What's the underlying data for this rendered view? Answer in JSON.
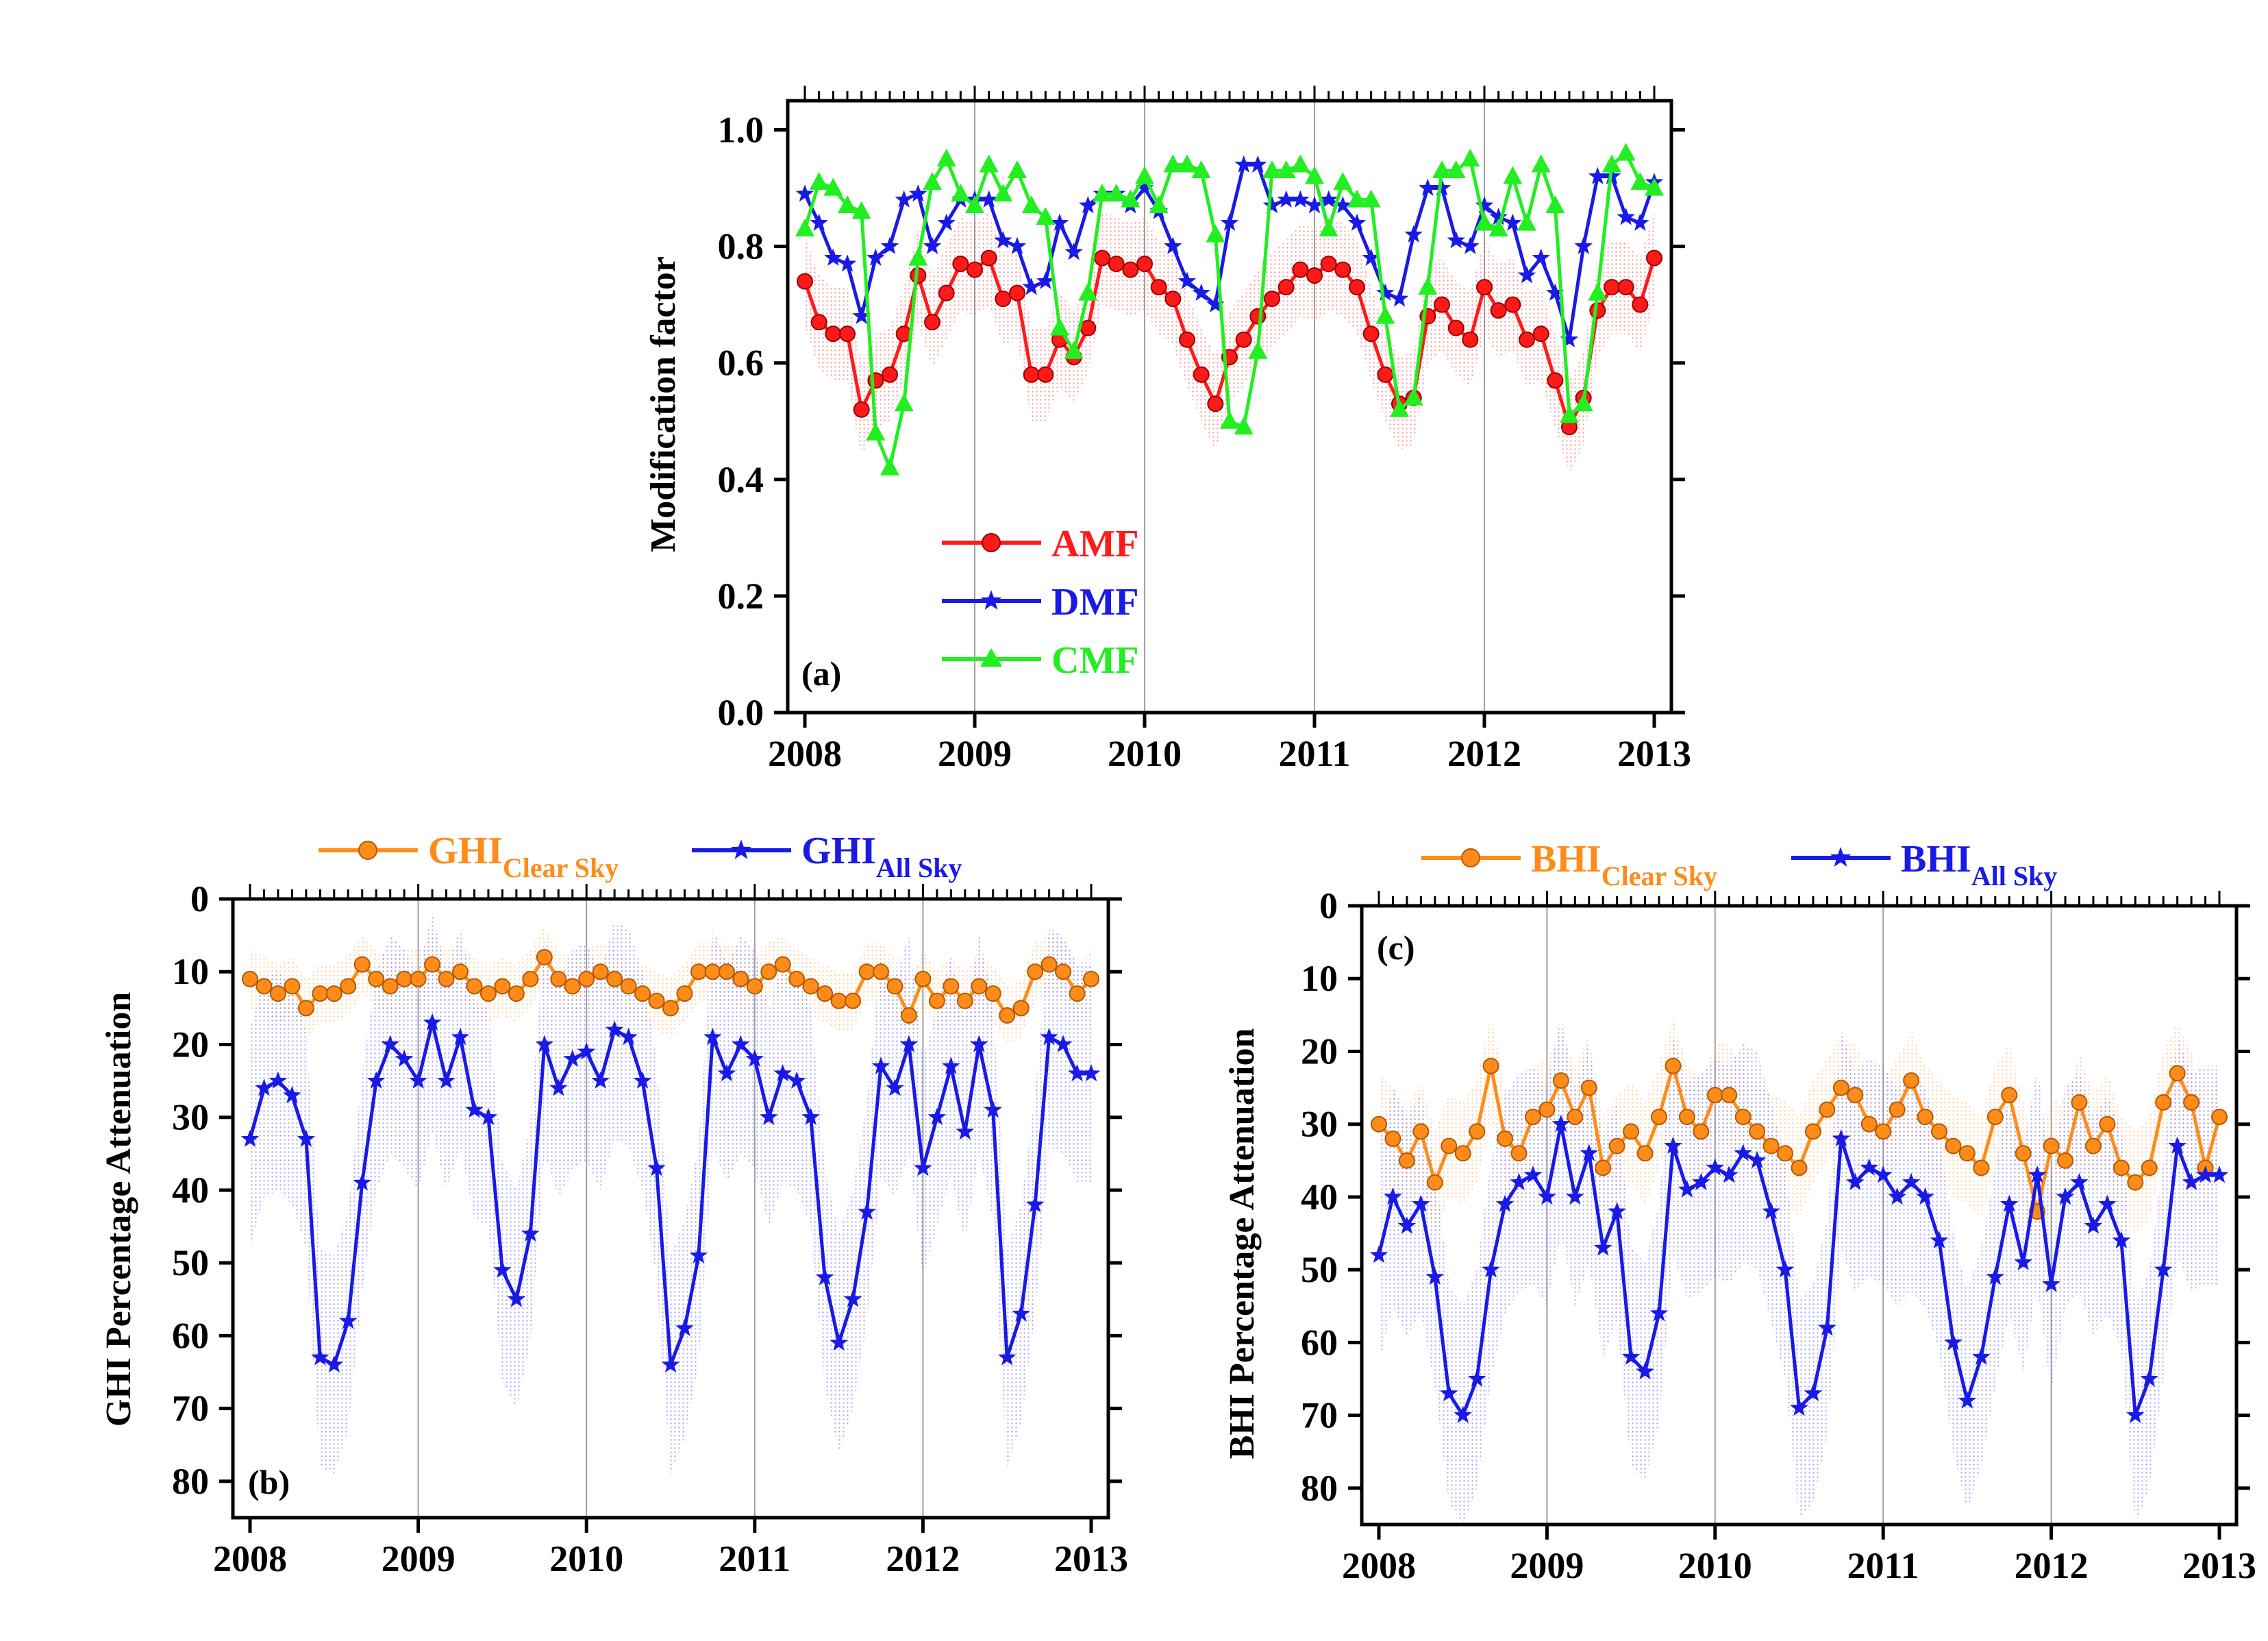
{
  "figure": {
    "colors": {
      "amf": "#ff1a1a",
      "dmf": "#1a1ae6",
      "cmf": "#22ee22",
      "clear": "#ff8c1a",
      "all": "#1a1ae6",
      "grid": "#a0a0a0"
    }
  },
  "chart_data": [
    {
      "id": "a",
      "type": "line",
      "panel_label": "(a)",
      "ylabel": "Modification factor",
      "xlabel": "",
      "xlim": [
        2008,
        2013
      ],
      "ylim": [
        0.0,
        1.05
      ],
      "yticks": [
        0.0,
        0.2,
        0.4,
        0.6,
        0.8,
        1.0
      ],
      "ytick_labels": [
        "0.0",
        "0.2",
        "0.4",
        "0.6",
        "0.8",
        "1.0"
      ],
      "xticks": [
        2008,
        2009,
        2010,
        2011,
        2012,
        2013
      ],
      "xtick_labels": [
        "2008",
        "2009",
        "2010",
        "2011",
        "2012",
        "2013"
      ],
      "grid": "vertical",
      "inverted_y": false,
      "legend": [
        {
          "label": "AMF",
          "marker": "circle",
          "color_key": "amf"
        },
        {
          "label": "DMF",
          "marker": "star",
          "color_key": "dmf"
        },
        {
          "label": "CMF",
          "marker": "triangle",
          "color_key": "cmf"
        }
      ],
      "series": [
        {
          "name": "AMF",
          "color_key": "amf",
          "marker": "circle",
          "band": 0.08,
          "values": [
            0.74,
            0.67,
            0.65,
            0.65,
            0.52,
            0.57,
            0.58,
            0.65,
            0.75,
            0.67,
            0.72,
            0.77,
            0.76,
            0.78,
            0.71,
            0.72,
            0.58,
            0.58,
            0.64,
            0.61,
            0.66,
            0.78,
            0.77,
            0.76,
            0.77,
            0.73,
            0.71,
            0.64,
            0.58,
            0.53,
            0.61,
            0.64,
            0.68,
            0.71,
            0.73,
            0.76,
            0.75,
            0.77,
            0.76,
            0.73,
            0.65,
            0.58,
            0.53,
            0.54,
            0.68,
            0.7,
            0.66,
            0.64,
            0.73,
            0.69,
            0.7,
            0.64,
            0.65,
            0.57,
            0.49,
            0.54,
            0.69,
            0.73,
            0.73,
            0.7,
            0.78
          ]
        },
        {
          "name": "DMF",
          "color_key": "dmf",
          "marker": "star",
          "band": 0,
          "values": [
            0.89,
            0.84,
            0.78,
            0.77,
            0.68,
            0.78,
            0.8,
            0.88,
            0.89,
            0.8,
            0.84,
            0.88,
            0.88,
            0.88,
            0.81,
            0.8,
            0.73,
            0.74,
            0.84,
            0.79,
            0.87,
            0.89,
            0.89,
            0.87,
            0.9,
            0.86,
            0.8,
            0.74,
            0.72,
            0.7,
            0.84,
            0.94,
            0.94,
            0.87,
            0.88,
            0.88,
            0.87,
            0.88,
            0.87,
            0.84,
            0.78,
            0.72,
            0.71,
            0.82,
            0.9,
            0.9,
            0.81,
            0.8,
            0.87,
            0.85,
            0.84,
            0.75,
            0.78,
            0.72,
            0.64,
            0.8,
            0.92,
            0.92,
            0.85,
            0.84,
            0.91
          ]
        },
        {
          "name": "CMF",
          "color_key": "cmf",
          "marker": "triangle",
          "band": 0,
          "values": [
            0.83,
            0.91,
            0.9,
            0.87,
            0.86,
            0.48,
            0.42,
            0.53,
            0.78,
            0.91,
            0.95,
            0.89,
            0.87,
            0.94,
            0.89,
            0.93,
            0.87,
            0.85,
            0.66,
            0.62,
            0.72,
            0.89,
            0.89,
            0.88,
            0.92,
            0.87,
            0.94,
            0.94,
            0.93,
            0.82,
            0.5,
            0.49,
            0.62,
            0.93,
            0.93,
            0.94,
            0.92,
            0.83,
            0.91,
            0.88,
            0.88,
            0.68,
            0.52,
            0.54,
            0.73,
            0.93,
            0.93,
            0.95,
            0.84,
            0.83,
            0.92,
            0.84,
            0.94,
            0.87,
            0.51,
            0.53,
            0.72,
            0.94,
            0.96,
            0.91,
            0.9
          ]
        }
      ]
    },
    {
      "id": "b",
      "type": "line",
      "panel_label": "(b)",
      "ylabel": "GHI Percentage Attenuation",
      "xlabel": "",
      "xlim": [
        2008,
        2013
      ],
      "ylim": [
        0,
        85
      ],
      "yticks": [
        0,
        10,
        20,
        30,
        40,
        50,
        60,
        70,
        80
      ],
      "ytick_labels": [
        "0",
        "10",
        "20",
        "30",
        "40",
        "50",
        "60",
        "70",
        "80"
      ],
      "xticks": [
        2008,
        2009,
        2010,
        2011,
        2012,
        2013
      ],
      "xtick_labels": [
        "2008",
        "2009",
        "2010",
        "2011",
        "2012",
        "2013"
      ],
      "grid": "vertical",
      "inverted_y": true,
      "legend": [
        {
          "label": "GHI",
          "sub": "Clear Sky",
          "marker": "circle",
          "color_key": "clear"
        },
        {
          "label": "GHI",
          "sub": "All Sky",
          "marker": "star",
          "color_key": "all"
        }
      ],
      "series": [
        {
          "name": "GHI Clear Sky",
          "color_key": "clear",
          "marker": "circle",
          "band": 4,
          "values": [
            11,
            12,
            13,
            12,
            15,
            13,
            13,
            12,
            9,
            11,
            12,
            11,
            11,
            9,
            11,
            10,
            12,
            13,
            12,
            13,
            11,
            8,
            11,
            12,
            11,
            10,
            11,
            12,
            13,
            14,
            15,
            13,
            10,
            10,
            10,
            11,
            12,
            10,
            9,
            11,
            12,
            13,
            14,
            14,
            10,
            10,
            12,
            16,
            11,
            14,
            12,
            14,
            12,
            13,
            16,
            15,
            10,
            9,
            10,
            13,
            11
          ]
        },
        {
          "name": "GHI All Sky",
          "color_key": "all",
          "marker": "star",
          "band": 15,
          "values": [
            33,
            26,
            25,
            27,
            33,
            63,
            64,
            58,
            39,
            25,
            20,
            22,
            25,
            17,
            25,
            19,
            29,
            30,
            51,
            55,
            46,
            20,
            26,
            22,
            21,
            25,
            18,
            19,
            25,
            37,
            64,
            59,
            49,
            19,
            24,
            20,
            22,
            30,
            24,
            25,
            30,
            52,
            61,
            55,
            43,
            23,
            26,
            20,
            37,
            30,
            23,
            32,
            20,
            29,
            63,
            57,
            42,
            19,
            20,
            24,
            24
          ]
        }
      ]
    },
    {
      "id": "c",
      "type": "line",
      "panel_label": "(c)",
      "ylabel": "BHI Percentage Attenuation",
      "xlabel": "",
      "xlim": [
        2008,
        2013
      ],
      "ylim": [
        0,
        85
      ],
      "yticks": [
        0,
        10,
        20,
        30,
        40,
        50,
        60,
        70,
        80
      ],
      "ytick_labels": [
        "0",
        "10",
        "20",
        "30",
        "40",
        "50",
        "60",
        "70",
        "80"
      ],
      "xticks": [
        2008,
        2009,
        2010,
        2011,
        2012,
        2013
      ],
      "xtick_labels": [
        "2008",
        "2009",
        "2010",
        "2011",
        "2012",
        "2013"
      ],
      "grid": "vertical",
      "inverted_y": true,
      "legend": [
        {
          "label": "BHI",
          "sub": "Clear Sky",
          "marker": "circle",
          "color_key": "clear"
        },
        {
          "label": "BHI",
          "sub": "All Sky",
          "marker": "star",
          "color_key": "all"
        }
      ],
      "series": [
        {
          "name": "BHI Clear Sky",
          "color_key": "clear",
          "marker": "circle",
          "band": 7,
          "values": [
            30,
            32,
            35,
            31,
            38,
            33,
            34,
            31,
            22,
            32,
            34,
            29,
            28,
            24,
            29,
            25,
            36,
            33,
            31,
            34,
            29,
            22,
            29,
            31,
            26,
            26,
            29,
            31,
            33,
            34,
            36,
            31,
            28,
            25,
            26,
            30,
            31,
            28,
            24,
            29,
            31,
            33,
            34,
            36,
            29,
            26,
            34,
            42,
            33,
            35,
            27,
            33,
            30,
            36,
            38,
            36,
            27,
            23,
            27,
            36,
            29
          ]
        },
        {
          "name": "BHI All Sky",
          "color_key": "all",
          "marker": "star",
          "band": 15,
          "values": [
            48,
            40,
            44,
            41,
            51,
            67,
            70,
            65,
            50,
            41,
            38,
            37,
            40,
            30,
            40,
            34,
            47,
            42,
            62,
            64,
            56,
            33,
            39,
            38,
            36,
            37,
            34,
            35,
            42,
            50,
            69,
            67,
            58,
            32,
            38,
            36,
            37,
            40,
            38,
            40,
            46,
            60,
            68,
            62,
            51,
            41,
            49,
            37,
            52,
            40,
            38,
            44,
            41,
            46,
            70,
            65,
            50,
            33,
            38,
            37,
            37
          ]
        }
      ]
    }
  ]
}
